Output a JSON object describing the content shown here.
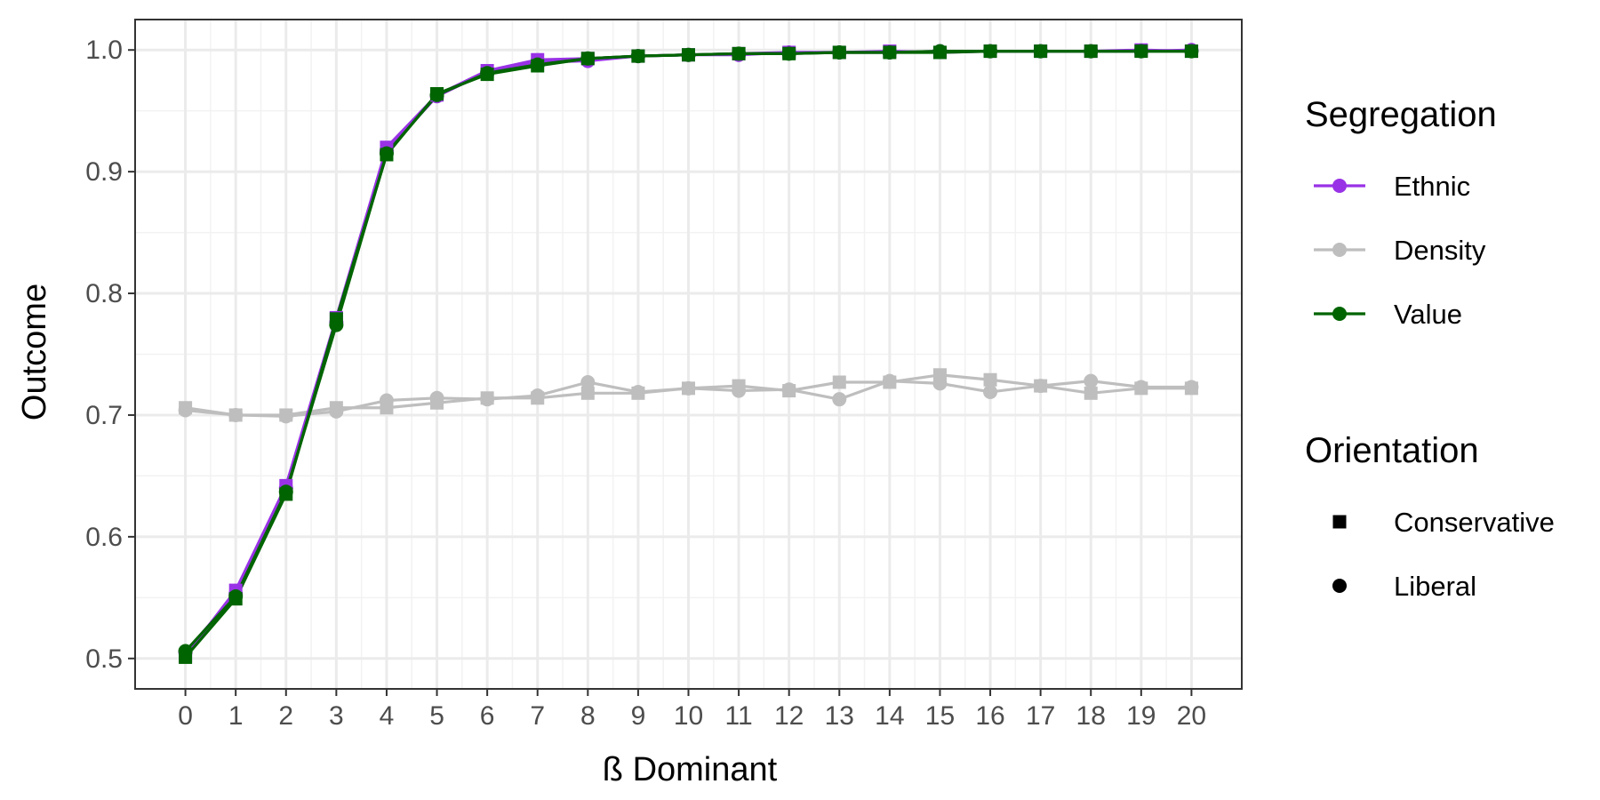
{
  "chart_data": {
    "type": "line",
    "title": "",
    "xlabel": "ß Dominant",
    "ylabel": "Outcome",
    "x": [
      0,
      1,
      2,
      3,
      4,
      5,
      6,
      7,
      8,
      9,
      10,
      11,
      12,
      13,
      14,
      15,
      16,
      17,
      18,
      19,
      20
    ],
    "xlim": [
      -1,
      21
    ],
    "ylim": [
      0.475,
      1.025
    ],
    "y_ticks": [
      0.5,
      0.6,
      0.7,
      0.8,
      0.9,
      1.0
    ],
    "y_tick_labels": [
      "0.5",
      "0.6",
      "0.7",
      "0.8",
      "0.9",
      "1.0"
    ],
    "x_tick_labels": [
      "0",
      "1",
      "2",
      "3",
      "4",
      "5",
      "6",
      "7",
      "8",
      "9",
      "10",
      "11",
      "12",
      "13",
      "14",
      "15",
      "16",
      "17",
      "18",
      "19",
      "20"
    ],
    "grid": true,
    "legend_placement": "right",
    "legend": {
      "color_title": "Segregation",
      "color_entries": [
        {
          "label": "Ethnic",
          "color": "#9932e6"
        },
        {
          "label": "Density",
          "color": "#bebebe"
        },
        {
          "label": "Value",
          "color": "#006400"
        }
      ],
      "shape_title": "Orientation",
      "shape_entries": [
        {
          "label": "Conservative",
          "shape": "square"
        },
        {
          "label": "Liberal",
          "shape": "circle"
        }
      ]
    },
    "series": [
      {
        "segregation": "Density",
        "orientation": "Conservative",
        "color": "#bebebe",
        "shape": "square",
        "values": [
          0.706,
          0.7,
          0.7,
          0.706,
          0.706,
          0.71,
          0.714,
          0.714,
          0.718,
          0.718,
          0.722,
          0.724,
          0.72,
          0.727,
          0.727,
          0.733,
          0.729,
          0.724,
          0.718,
          0.722,
          0.722
        ]
      },
      {
        "segregation": "Density",
        "orientation": "Liberal",
        "color": "#bebebe",
        "shape": "circle",
        "values": [
          0.704,
          0.7,
          0.699,
          0.703,
          0.712,
          0.714,
          0.713,
          0.716,
          0.727,
          0.719,
          0.722,
          0.72,
          0.721,
          0.713,
          0.728,
          0.726,
          0.719,
          0.724,
          0.728,
          0.723,
          0.723
        ]
      },
      {
        "segregation": "Ethnic",
        "orientation": "Conservative",
        "color": "#9932e6",
        "shape": "square",
        "values": [
          0.502,
          0.556,
          0.642,
          0.78,
          0.92,
          0.963,
          0.983,
          0.992,
          0.993,
          0.995,
          0.996,
          0.997,
          0.998,
          0.998,
          0.999,
          0.998,
          0.999,
          0.999,
          0.999,
          1.0,
          0.999
        ]
      },
      {
        "segregation": "Ethnic",
        "orientation": "Liberal",
        "color": "#9932e6",
        "shape": "circle",
        "values": [
          0.505,
          0.553,
          0.64,
          0.776,
          0.917,
          0.962,
          0.982,
          0.99,
          0.991,
          0.995,
          0.996,
          0.996,
          0.998,
          0.998,
          0.998,
          0.999,
          0.999,
          0.999,
          0.999,
          0.999,
          1.0
        ]
      },
      {
        "segregation": "Value",
        "orientation": "Conservative",
        "color": "#006400",
        "shape": "square",
        "values": [
          0.501,
          0.549,
          0.635,
          0.779,
          0.914,
          0.964,
          0.98,
          0.987,
          0.993,
          0.995,
          0.996,
          0.997,
          0.997,
          0.998,
          0.998,
          0.998,
          0.999,
          0.999,
          0.999,
          0.999,
          0.999
        ]
      },
      {
        "segregation": "Value",
        "orientation": "Liberal",
        "color": "#006400",
        "shape": "circle",
        "values": [
          0.506,
          0.551,
          0.637,
          0.774,
          0.915,
          0.963,
          0.981,
          0.988,
          0.993,
          0.995,
          0.996,
          0.997,
          0.997,
          0.998,
          0.998,
          0.999,
          0.999,
          0.999,
          0.999,
          0.999,
          0.999
        ]
      }
    ]
  }
}
